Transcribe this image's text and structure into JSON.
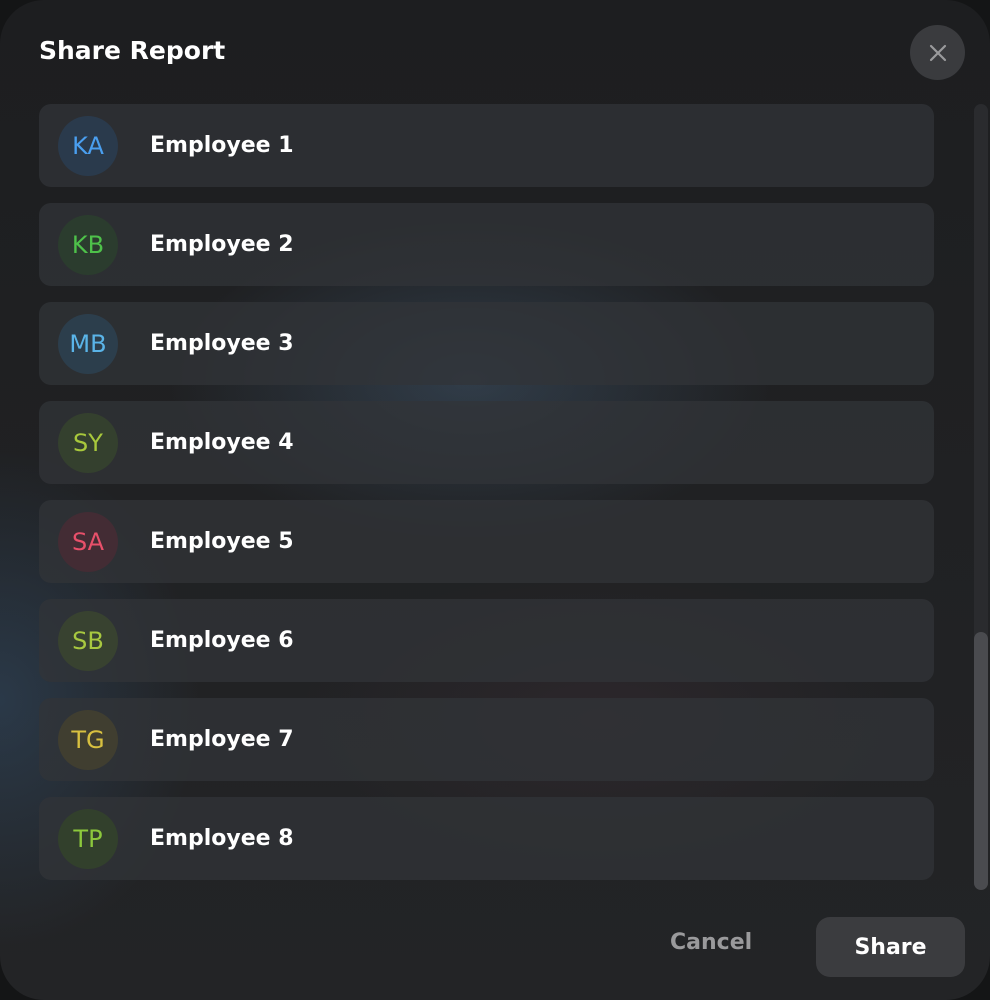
{
  "dialog": {
    "title": "Share Report",
    "close_icon": "close-icon"
  },
  "employees": [
    {
      "initials": "KA",
      "name": "Employee 1",
      "color": "#4a9ff0",
      "bg": "#2a3a4c"
    },
    {
      "initials": "KB",
      "name": "Employee 2",
      "color": "#4ec24a",
      "bg": "#2b3c2e"
    },
    {
      "initials": "MB",
      "name": "Employee 3",
      "color": "#5ab4e8",
      "bg": "#2c3e4c"
    },
    {
      "initials": "SY",
      "name": "Employee 4",
      "color": "#a8c83c",
      "bg": "#34402e"
    },
    {
      "initials": "SA",
      "name": "Employee 5",
      "color": "#e8506a",
      "bg": "#432c34"
    },
    {
      "initials": "SB",
      "name": "Employee 6",
      "color": "#a8c840",
      "bg": "#384230"
    },
    {
      "initials": "TG",
      "name": "Employee 7",
      "color": "#d8c040",
      "bg": "#403e30"
    },
    {
      "initials": "TP",
      "name": "Employee 8",
      "color": "#8cc83c",
      "bg": "#32402c"
    }
  ],
  "footer": {
    "cancel_label": "Cancel",
    "share_label": "Share"
  }
}
